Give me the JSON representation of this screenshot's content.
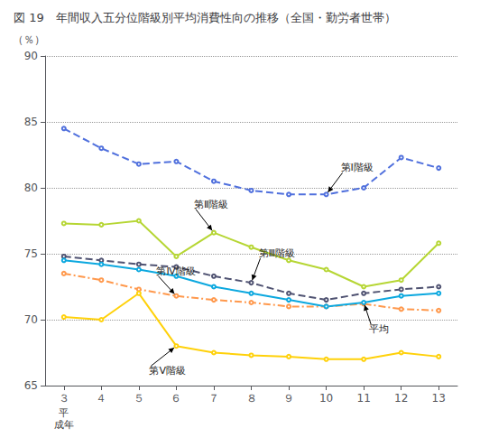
{
  "chart_data": {
    "type": "line",
    "title": "図 19　年間収入五分位階級別平均消費性向の推移（全国・勤労者世帯）",
    "xlabel": "平\n成年",
    "ylabel": "（％）",
    "x": [
      3,
      4,
      5,
      6,
      7,
      8,
      9,
      10,
      11,
      12,
      13
    ],
    "xlim": [
      2.5,
      13.5
    ],
    "xticks": [
      {
        "value": 3,
        "label": "３"
      },
      {
        "value": 4,
        "label": "４"
      },
      {
        "value": 5,
        "label": "５"
      },
      {
        "value": 6,
        "label": "６"
      },
      {
        "value": 7,
        "label": "７"
      },
      {
        "value": 8,
        "label": "８"
      },
      {
        "value": 9,
        "label": "９"
      },
      10,
      11,
      12,
      13
    ],
    "ylim": [
      65,
      90
    ],
    "yticks": [
      65,
      70,
      75,
      80,
      85,
      90
    ],
    "grid": "y",
    "series": [
      {
        "name": "第Ⅰ階級",
        "line_style": "dashed",
        "values": [
          84.5,
          83.0,
          81.8,
          82.0,
          80.5,
          79.8,
          79.5,
          79.5,
          80.0,
          82.3,
          81.5
        ]
      },
      {
        "name": "第Ⅱ階級",
        "line_style": "solid",
        "values": [
          77.3,
          77.2,
          77.5,
          74.8,
          76.6,
          75.5,
          74.5,
          73.8,
          72.5,
          73.0,
          75.8
        ]
      },
      {
        "name": "第Ⅲ階級",
        "line_style": "dashed",
        "values": [
          74.8,
          74.5,
          74.2,
          74.0,
          73.3,
          72.8,
          72.0,
          71.5,
          72.0,
          72.3,
          72.5
        ]
      },
      {
        "name": "第Ⅳ階級",
        "line_style": "dashdot",
        "values": [
          73.5,
          73.0,
          72.3,
          71.8,
          71.5,
          71.3,
          71.0,
          71.0,
          71.2,
          70.8,
          70.7
        ]
      },
      {
        "name": "平均",
        "line_style": "solid",
        "values": [
          74.5,
          74.2,
          73.8,
          73.3,
          72.5,
          72.0,
          71.5,
          71.0,
          71.3,
          71.8,
          72.0
        ]
      },
      {
        "name": "第Ⅴ階級",
        "line_style": "solid",
        "values": [
          70.2,
          70.0,
          72.0,
          68.0,
          67.5,
          67.3,
          67.2,
          67.0,
          67.0,
          67.5,
          67.2
        ]
      }
    ],
    "annotations": [
      {
        "text": "第Ⅰ階級",
        "x": 10,
        "y": 79.5
      },
      {
        "text": "第Ⅱ階級",
        "x": 7,
        "y": 76.6
      },
      {
        "text": "第Ⅲ階級",
        "x": 8,
        "y": 72.8
      },
      {
        "text": "第Ⅳ階級",
        "x": 6,
        "y": 71.8
      },
      {
        "text": "平均",
        "x": 11,
        "y": 71.3
      },
      {
        "text": "第Ⅴ階級",
        "x": 6,
        "y": 68.0
      }
    ]
  }
}
